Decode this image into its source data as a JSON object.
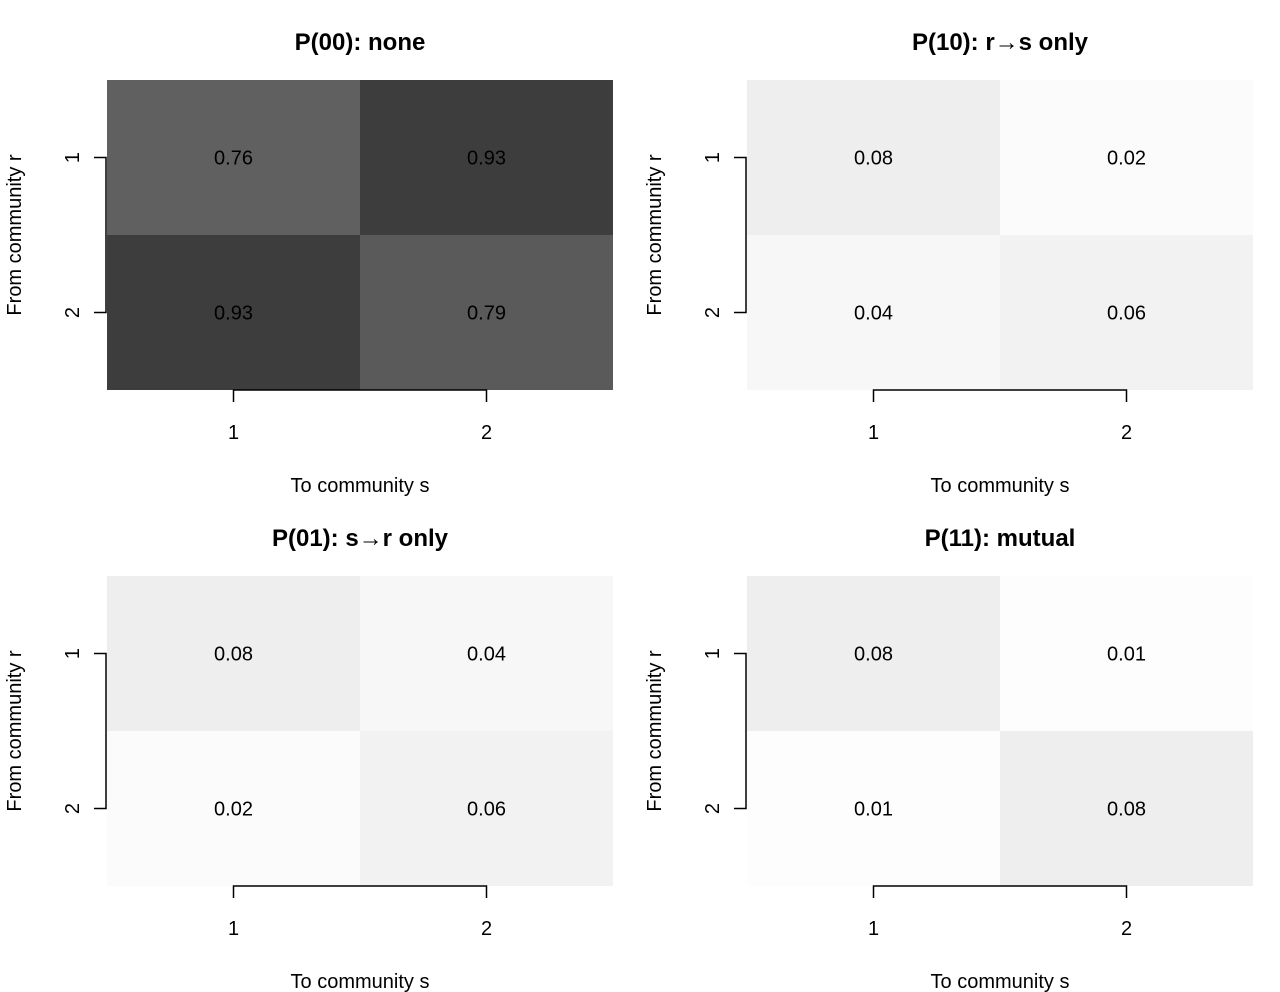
{
  "chart_data": [
    {
      "type": "heatmap",
      "title": "P(00): none",
      "xlabel": "To community s",
      "ylabel": "From community r",
      "x_categories": [
        "1",
        "2"
      ],
      "y_categories": [
        "1",
        "2"
      ],
      "values": [
        [
          0.76,
          0.93
        ],
        [
          0.93,
          0.79
        ]
      ],
      "value_labels": [
        [
          "0.76",
          "0.93"
        ],
        [
          "0.93",
          "0.79"
        ]
      ],
      "color_range": [
        0,
        1
      ],
      "colormap": "white-to-black"
    },
    {
      "type": "heatmap",
      "title": "P(10): r→s only",
      "xlabel": "To community s",
      "ylabel": "From community r",
      "x_categories": [
        "1",
        "2"
      ],
      "y_categories": [
        "1",
        "2"
      ],
      "values": [
        [
          0.08,
          0.02
        ],
        [
          0.04,
          0.06
        ]
      ],
      "value_labels": [
        [
          "0.08",
          "0.02"
        ],
        [
          "0.04",
          "0.06"
        ]
      ],
      "color_range": [
        0,
        1
      ],
      "colormap": "white-to-black"
    },
    {
      "type": "heatmap",
      "title": "P(01): s→r only",
      "xlabel": "To community s",
      "ylabel": "From community r",
      "x_categories": [
        "1",
        "2"
      ],
      "y_categories": [
        "1",
        "2"
      ],
      "values": [
        [
          0.08,
          0.04
        ],
        [
          0.02,
          0.06
        ]
      ],
      "value_labels": [
        [
          "0.08",
          "0.04"
        ],
        [
          "0.02",
          "0.06"
        ]
      ],
      "color_range": [
        0,
        1
      ],
      "colormap": "white-to-black"
    },
    {
      "type": "heatmap",
      "title": "P(11): mutual",
      "xlabel": "To community s",
      "ylabel": "From community r",
      "x_categories": [
        "1",
        "2"
      ],
      "y_categories": [
        "1",
        "2"
      ],
      "values": [
        [
          0.08,
          0.01
        ],
        [
          0.01,
          0.08
        ]
      ],
      "value_labels": [
        [
          "0.08",
          "0.01"
        ],
        [
          "0.01",
          "0.08"
        ]
      ],
      "color_range": [
        0,
        1
      ],
      "colormap": "white-to-black"
    }
  ]
}
